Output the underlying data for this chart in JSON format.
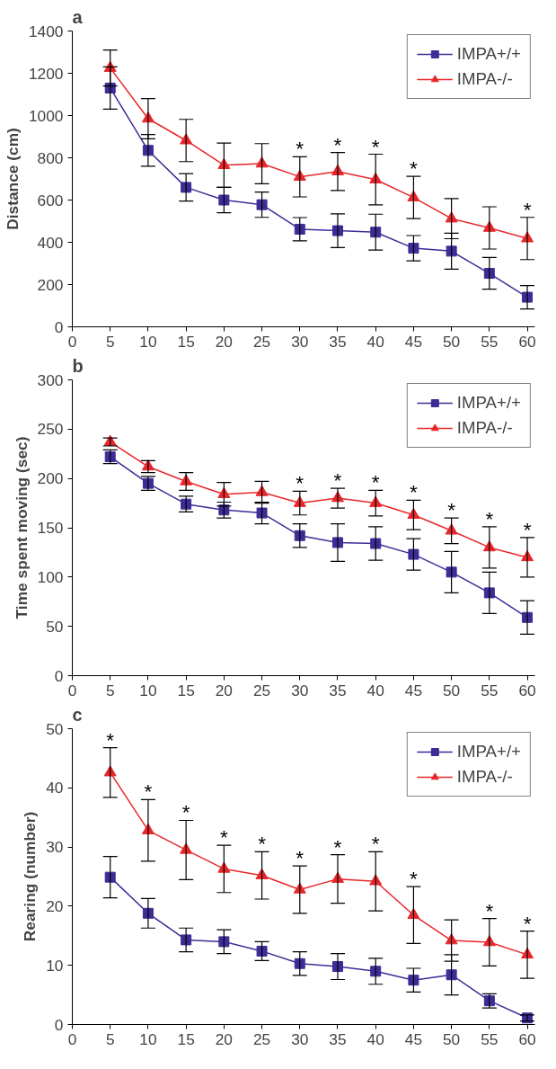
{
  "chart_data": [
    {
      "type": "line",
      "title": "a",
      "ylabel": "Distance (cm)",
      "x": [
        5,
        10,
        15,
        20,
        25,
        30,
        35,
        40,
        45,
        50,
        55,
        60
      ],
      "xlim": [
        0,
        61
      ],
      "xticks": [
        0,
        5,
        10,
        15,
        20,
        25,
        30,
        35,
        40,
        45,
        50,
        55,
        60
      ],
      "ylim": [
        0,
        1400
      ],
      "yticks": [
        0,
        200,
        400,
        600,
        800,
        1000,
        1200,
        1400
      ],
      "legend": "top right",
      "grid": false,
      "line_style": "solid",
      "series": [
        {
          "name": "IMPA+/+",
          "color": "#3f2b96",
          "marker": "square",
          "values": [
            1130,
            835,
            660,
            600,
            578,
            462,
            455,
            448,
            372,
            358,
            253,
            140
          ],
          "errors": [
            100,
            75,
            65,
            60,
            60,
            55,
            80,
            85,
            60,
            85,
            75,
            55
          ]
        },
        {
          "name": "IMPA-/-",
          "color": "#e8262a",
          "marker": "triangle",
          "values": [
            1225,
            985,
            882,
            765,
            772,
            710,
            735,
            697,
            612,
            512,
            468,
            418
          ],
          "errors": [
            85,
            95,
            100,
            105,
            95,
            95,
            90,
            120,
            100,
            95,
            100,
            100
          ]
        }
      ],
      "annotations": [
        {
          "text": "*",
          "x": 30,
          "y": 805
        },
        {
          "text": "*",
          "x": 35,
          "y": 825
        },
        {
          "text": "*",
          "x": 40,
          "y": 817
        },
        {
          "text": "*",
          "x": 45,
          "y": 712
        },
        {
          "text": "*",
          "x": 60,
          "y": 518
        }
      ]
    },
    {
      "type": "line",
      "title": "b",
      "ylabel": "Time spent moving (sec)",
      "x": [
        5,
        10,
        15,
        20,
        25,
        30,
        35,
        40,
        45,
        50,
        55,
        60
      ],
      "xlim": [
        0,
        61
      ],
      "xticks": [
        0,
        5,
        10,
        15,
        20,
        25,
        30,
        35,
        40,
        45,
        50,
        55,
        60
      ],
      "ylim": [
        0,
        300
      ],
      "yticks": [
        0,
        50,
        100,
        150,
        200,
        250,
        300
      ],
      "legend": "top right",
      "grid": false,
      "line_style": "solid",
      "series": [
        {
          "name": "IMPA+/+",
          "color": "#3f2b96",
          "marker": "square",
          "values": [
            222,
            195,
            174,
            168,
            165,
            142,
            135,
            134,
            123,
            105,
            84,
            59
          ],
          "errors": [
            7,
            7,
            8,
            8,
            11,
            12,
            19,
            17,
            16,
            21,
            21,
            17
          ]
        },
        {
          "name": "IMPA-/-",
          "color": "#e8262a",
          "marker": "triangle",
          "values": [
            237,
            212,
            197,
            184,
            186,
            175,
            180,
            175,
            163,
            147,
            130,
            120
          ],
          "errors": [
            4,
            6,
            9,
            12,
            11,
            12,
            10,
            13,
            15,
            13,
            21,
            20
          ]
        }
      ],
      "annotations": [
        {
          "text": "*",
          "x": 30,
          "y": 187
        },
        {
          "text": "*",
          "x": 35,
          "y": 190
        },
        {
          "text": "*",
          "x": 40,
          "y": 188
        },
        {
          "text": "*",
          "x": 45,
          "y": 178
        },
        {
          "text": "*",
          "x": 50,
          "y": 160
        },
        {
          "text": "*",
          "x": 55,
          "y": 151
        },
        {
          "text": "*",
          "x": 60,
          "y": 140
        }
      ]
    },
    {
      "type": "line",
      "title": "c",
      "ylabel": "Rearing (number)",
      "x": [
        5,
        10,
        15,
        20,
        25,
        30,
        35,
        40,
        45,
        50,
        55,
        60
      ],
      "xlim": [
        0,
        61
      ],
      "xticks": [
        0,
        5,
        10,
        15,
        20,
        25,
        30,
        35,
        40,
        45,
        50,
        55,
        60
      ],
      "ylim": [
        0,
        50
      ],
      "yticks": [
        0,
        10,
        20,
        30,
        40,
        50
      ],
      "legend": "top right",
      "grid": false,
      "line_style": "solid",
      "series": [
        {
          "name": "IMPA+/+",
          "color": "#3f2b96",
          "marker": "square",
          "values": [
            24.9,
            18.8,
            14.3,
            14,
            12.4,
            10.3,
            9.8,
            9,
            7.5,
            8.4,
            4,
            1.1
          ],
          "errors": [
            3.5,
            2.5,
            2,
            2,
            1.6,
            2,
            2.2,
            2.2,
            2,
            3.4,
            1.2,
            0.5
          ]
        },
        {
          "name": "IMPA-/-",
          "color": "#e8262a",
          "marker": "triangle",
          "values": [
            42.6,
            32.8,
            29.5,
            26.3,
            25.2,
            22.8,
            24.6,
            24.2,
            18.5,
            14.2,
            13.9,
            11.8
          ],
          "errors": [
            4.2,
            5.2,
            5,
            4,
            4,
            4,
            4.1,
            5,
            4.8,
            3.5,
            4,
            4
          ]
        }
      ],
      "annotations": [
        {
          "text": "*",
          "x": 5,
          "y": 46.8
        },
        {
          "text": "*",
          "x": 10,
          "y": 38
        },
        {
          "text": "*",
          "x": 15,
          "y": 34.5
        },
        {
          "text": "*",
          "x": 20,
          "y": 30.3
        },
        {
          "text": "*",
          "x": 25,
          "y": 29.2
        },
        {
          "text": "*",
          "x": 30,
          "y": 26.8
        },
        {
          "text": "*",
          "x": 35,
          "y": 28.7
        },
        {
          "text": "*",
          "x": 40,
          "y": 29.2
        },
        {
          "text": "*",
          "x": 45,
          "y": 23.3
        },
        {
          "text": "*",
          "x": 55,
          "y": 17.9
        },
        {
          "text": "*",
          "x": 60,
          "y": 15.8
        }
      ]
    }
  ]
}
